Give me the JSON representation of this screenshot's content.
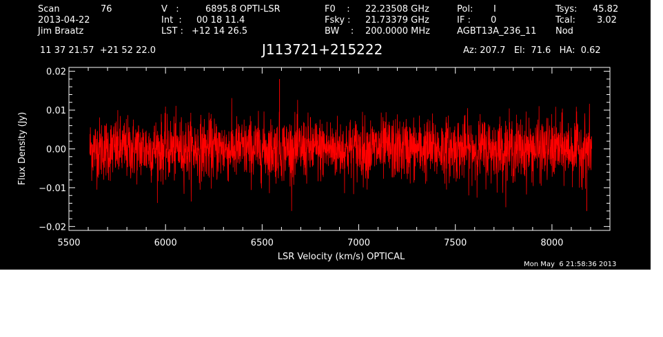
{
  "header": {
    "scan_label": "Scan",
    "scan_number": "76",
    "date": "2013-04-22",
    "observer": "Jim Braatz",
    "velocity_label": "V   :",
    "velocity_value": "6895.8 OPTI-LSR",
    "int_label": "Int  :",
    "int_value": "00 18 11.4",
    "lst_label": "LST :",
    "lst_value": "+12 14 26.5",
    "f0_label": "F0    :",
    "f0_value": "22.23508 GHz",
    "fsky_label": "Fsky :",
    "fsky_value": "21.73379 GHz",
    "bw_label": "BW    :",
    "bw_value": "200.0000 MHz",
    "pol_label": "Pol:",
    "pol_value": "I",
    "if_label": "IF :",
    "if_value": "0",
    "project": "AGBT13A_236_11",
    "tsys_label": "Tsys:",
    "tsys_value": "45.82",
    "tcal_label": "Tcal:",
    "tcal_value": "3.02",
    "procedure": "Nod",
    "coordinates": "11 37 21.57  +21 52 22.0",
    "object_name": "J113721+215222",
    "az_el_ha": "Az: 207.7   El:  71.6   HA:  0.62",
    "timestamp": "Mon May  6 21:58:36 2013"
  },
  "chart_data": {
    "type": "line",
    "xlabel": "LSR Velocity (km/s) OPTICAL",
    "ylabel": "Flux Density (Jy)",
    "xlim": [
      5500,
      8300
    ],
    "ylim": [
      -0.021,
      0.021
    ],
    "x_ticks": [
      5500,
      6000,
      6500,
      7000,
      7500,
      8000
    ],
    "x_tick_labels": [
      "5500",
      "6000",
      "6500",
      "7000",
      "7500",
      "8000"
    ],
    "y_ticks": [
      -0.02,
      -0.01,
      0.0,
      0.01,
      0.02
    ],
    "y_tick_labels": [
      "−0.02",
      "−0.01",
      "0.00",
      "0.01",
      "0.02"
    ],
    "grid": false,
    "series": [
      {
        "color": "#ff0000",
        "x_start": 5608,
        "x_end": 8206,
        "mean": 0.0,
        "rms": 0.004,
        "peak_max": 0.018,
        "peak_min": -0.016
      }
    ]
  }
}
